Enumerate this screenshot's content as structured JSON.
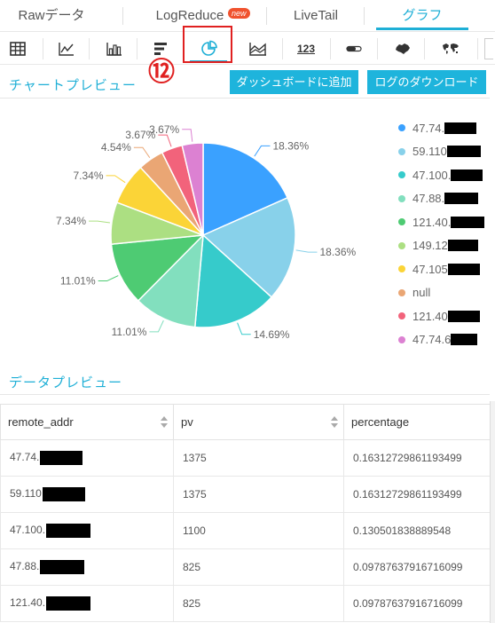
{
  "top_tabs": [
    {
      "label": "Rawデータ",
      "active": false
    },
    {
      "label": "LogReduce",
      "active": false,
      "badge": "new"
    },
    {
      "label": "LiveTail",
      "active": false
    },
    {
      "label": "グラフ",
      "active": true
    }
  ],
  "chart_type_icons": [
    {
      "name": "table-icon"
    },
    {
      "name": "line-chart-icon"
    },
    {
      "name": "bar-chart-icon"
    },
    {
      "name": "horizontal-bar-chart-icon"
    },
    {
      "name": "pie-chart-icon",
      "active": true
    },
    {
      "name": "area-chart-icon"
    },
    {
      "name": "single-value-icon",
      "text": "123"
    },
    {
      "name": "progress-bar-icon"
    },
    {
      "name": "china-map-icon"
    },
    {
      "name": "world-map-icon"
    }
  ],
  "annotation": {
    "step_number": "⑫"
  },
  "chart_preview": {
    "title": "チャートプレビュー",
    "add_to_dashboard_label": "ダッシュボードに追加",
    "download_log_label": "ログのダウンロード"
  },
  "chart_data": {
    "type": "pie",
    "slices": [
      {
        "label": "47.74.",
        "value": 18.36,
        "display": "18.36%",
        "color": "#3aa1ff"
      },
      {
        "label": "59.110",
        "value": 18.36,
        "display": "18.36%",
        "color": "#88d1ea"
      },
      {
        "label": "47.100.",
        "value": 14.69,
        "display": "14.69%",
        "color": "#36cbcb"
      },
      {
        "label": "47.88.",
        "value": 11.01,
        "display": "11.01%",
        "color": "#82dfbe"
      },
      {
        "label": "121.40.",
        "value": 11.01,
        "display": "11.01%",
        "color": "#4ecb73"
      },
      {
        "label": "149.12",
        "value": 7.34,
        "display": "7.34%",
        "color": "#acdf82"
      },
      {
        "label": "47.105",
        "value": 7.34,
        "display": "7.34%",
        "color": "#fbd437"
      },
      {
        "label": "null",
        "value": 4.54,
        "display": "4.54%",
        "color": "#eaa674"
      },
      {
        "label": "121.40",
        "value": 3.67,
        "display": "3.67%",
        "color": "#f2637b"
      },
      {
        "label": "47.74.6",
        "value": 3.67,
        "display": "3.67%",
        "color": "#dc81d2"
      }
    ],
    "legend_position": "right"
  },
  "data_preview": {
    "title": "データプレビュー",
    "columns": [
      "remote_addr",
      "pv",
      "percentage"
    ],
    "rows": [
      {
        "remote_addr": "47.74.",
        "pv": "1375",
        "percentage": "0.16312729861193499"
      },
      {
        "remote_addr": "59.110",
        "pv": "1375",
        "percentage": "0.16312729861193499"
      },
      {
        "remote_addr": "47.100.",
        "pv": "1100",
        "percentage": "0.130501838889548"
      },
      {
        "remote_addr": "47.88.",
        "pv": "825",
        "percentage": "0.09787637916716099"
      },
      {
        "remote_addr": "121.40.",
        "pv": "825",
        "percentage": "0.09787637916716099"
      }
    ]
  }
}
